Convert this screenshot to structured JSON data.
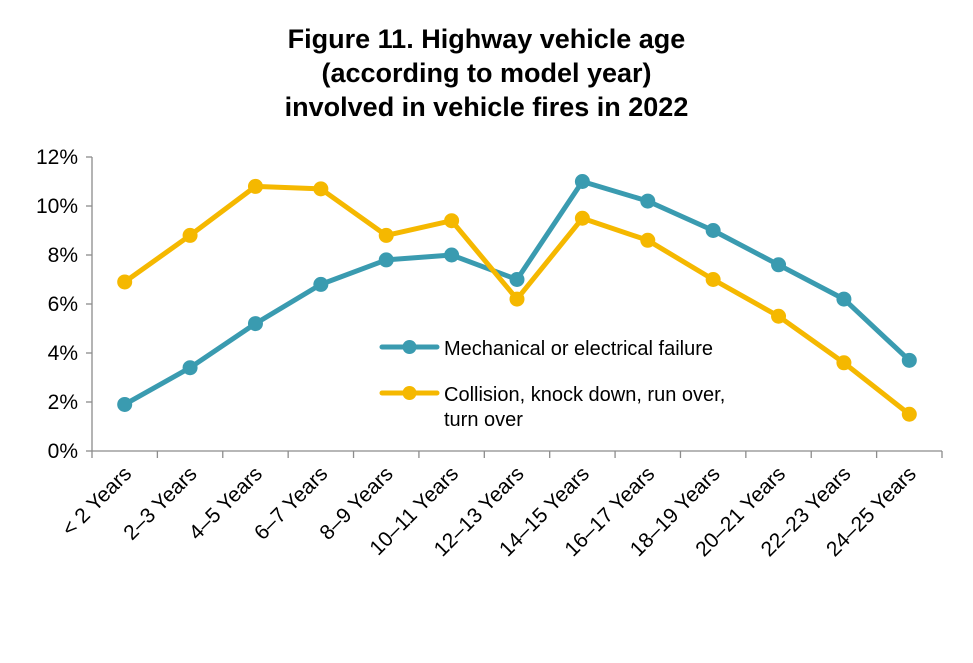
{
  "chart_data": {
    "type": "line",
    "title_lines": [
      "Figure 11. Highway vehicle age",
      "(according to model year)",
      "involved in vehicle fires in 2022"
    ],
    "categories": [
      "< 2 Years",
      "2–3 Years",
      "4–5 Years",
      "6–7 Years",
      "8–9 Years",
      "10–11 Years",
      "12–13 Years",
      "14–15 Years",
      "16–17 Years",
      "18–19 Years",
      "20–21 Years",
      "22–23 Years",
      "24–25 Years"
    ],
    "y_ticks": [
      "0%",
      "2%",
      "4%",
      "6%",
      "8%",
      "10%",
      "12%"
    ],
    "ylim": [
      0,
      12
    ],
    "series": [
      {
        "name": "Mechanical or electrical failure",
        "color": "#3a9bb0",
        "values": [
          1.9,
          3.4,
          5.2,
          6.8,
          7.8,
          8.0,
          7.0,
          11.0,
          10.2,
          9.0,
          7.6,
          6.2,
          3.7
        ]
      },
      {
        "name": "Collision, knock down, run over, turn over",
        "name_lines": [
          "Collision, knock down, run over,",
          "turn over"
        ],
        "color": "#f5b800",
        "values": [
          6.9,
          8.8,
          10.8,
          10.7,
          8.8,
          9.4,
          6.2,
          9.5,
          8.6,
          7.0,
          5.5,
          3.6,
          1.5
        ]
      }
    ],
    "grid": false,
    "legend_position": "inside-right"
  }
}
